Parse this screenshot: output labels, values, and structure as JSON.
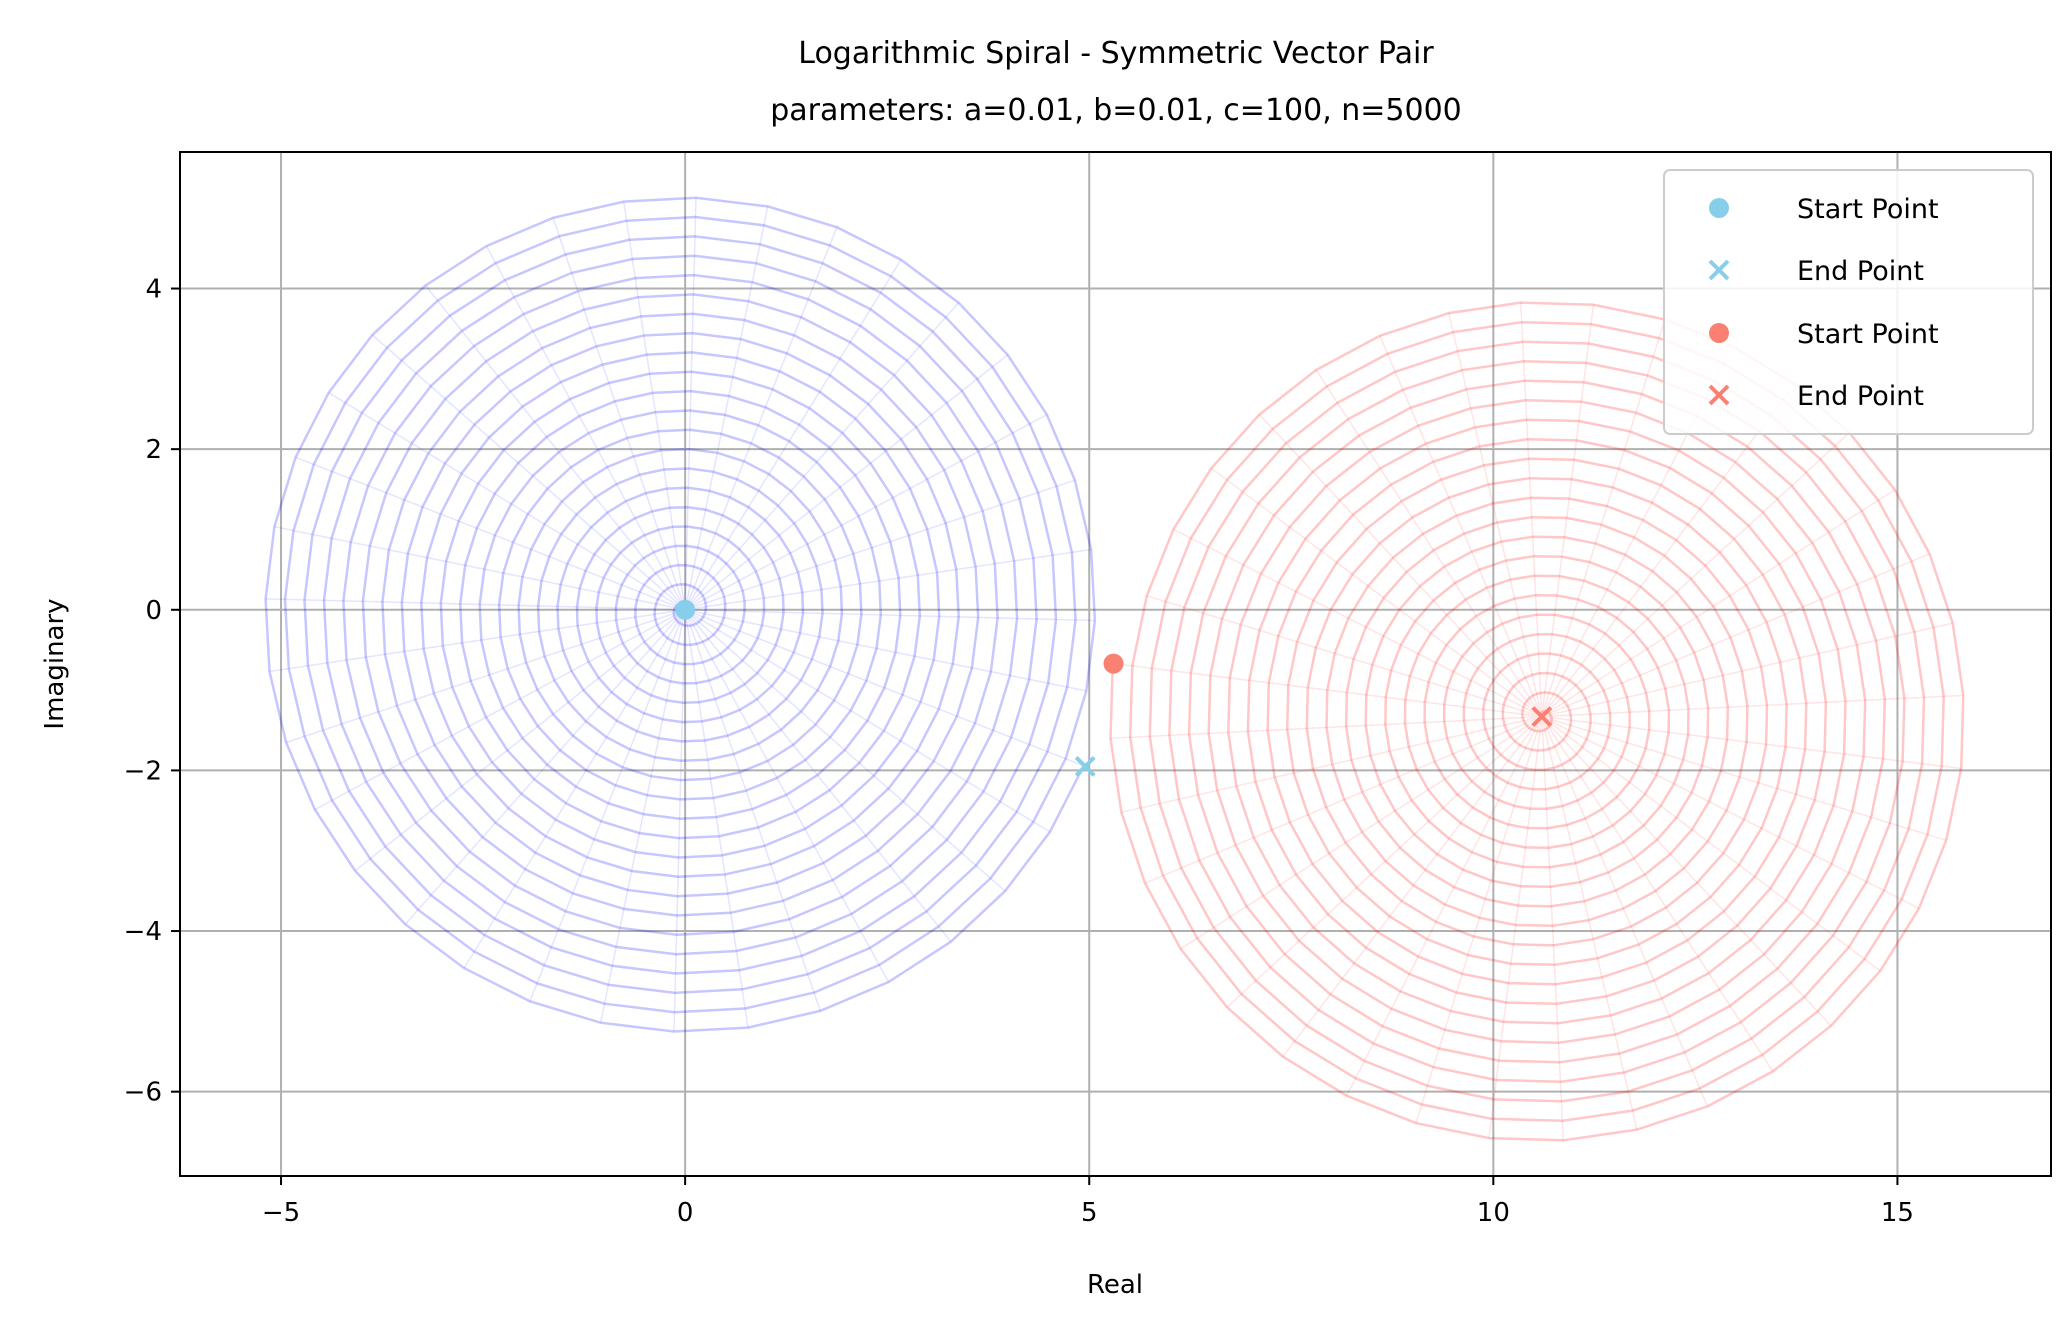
{
  "chart_data": {
    "type": "line",
    "title": "Logarithmic Spiral - Symmetric Vector Pair",
    "subtitle": "parameters: a=0.01, b=0.01, c=100, n=5000",
    "xlabel": "Real",
    "ylabel": "Imaginary",
    "xlim": [
      -6.25,
      16.9
    ],
    "ylim": [
      -7.05,
      5.7
    ],
    "xticks": [
      -5,
      0,
      5,
      10,
      15
    ],
    "yticks": [
      -6,
      -4,
      -2,
      0,
      2,
      4
    ],
    "xtick_labels": [
      "−5",
      "0",
      "5",
      "10",
      "15"
    ],
    "ytick_labels": [
      "−6",
      "−4",
      "−2",
      "0",
      "2",
      "4"
    ],
    "grid": true,
    "legend_position": "top-right",
    "series": [
      {
        "line_color": "#0000ff",
        "spiral": {
          "center": [
            0,
            0
          ],
          "rotation_direction": "counterclockwise",
          "points_per_turn": 36,
          "turns": 22,
          "start_radius": 0,
          "end_radius": 5.3,
          "end_point": [
            4.95,
            -1.95
          ]
        },
        "start_point": {
          "label": "Start Point",
          "x": 0,
          "y": 0,
          "marker": "circle",
          "color": "#87ceeb"
        },
        "end_point": {
          "label": "End Point",
          "x": 4.95,
          "y": -1.95,
          "marker": "x",
          "color": "#87ceeb"
        }
      },
      {
        "line_color": "#ff0000",
        "spiral": {
          "center": [
            10.6,
            -1.33
          ],
          "rotation_direction": "clockwise",
          "points_per_turn": 36,
          "turns": 22,
          "start_radius": 5.35,
          "end_radius": 0,
          "start_point": [
            5.3,
            -0.67
          ]
        },
        "start_point": {
          "label": "Start Point",
          "x": 5.3,
          "y": -0.67,
          "marker": "circle",
          "color": "#fa8072"
        },
        "end_point": {
          "label": "End Point",
          "x": 10.6,
          "y": -1.33,
          "marker": "x",
          "color": "#fa8072"
        }
      }
    ]
  }
}
